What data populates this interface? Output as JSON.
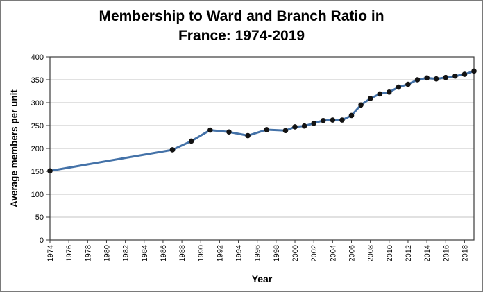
{
  "title": {
    "line1": "Membership to Ward and Branch Ratio in",
    "line2": "France: 1974-2019"
  },
  "chart_data": {
    "type": "line",
    "title": "Membership to Ward and Branch Ratio in France: 1974-2019",
    "xlabel": "Year",
    "ylabel": "Average members per unit",
    "x": [
      1974,
      1987,
      1989,
      1991,
      1993,
      1995,
      1997,
      1999,
      2000,
      2001,
      2002,
      2003,
      2004,
      2005,
      2006,
      2007,
      2008,
      2009,
      2010,
      2011,
      2012,
      2013,
      2014,
      2015,
      2016,
      2017,
      2018,
      2019
    ],
    "values": [
      151,
      197,
      216,
      240,
      236,
      228,
      241,
      239,
      247,
      249,
      255,
      261,
      262,
      262,
      272,
      295,
      309,
      319,
      323,
      334,
      340,
      350,
      354,
      352,
      355,
      358,
      362,
      369
    ],
    "xlim": [
      1974,
      2019
    ],
    "ylim": [
      0,
      400
    ],
    "y_ticks": [
      0,
      50,
      100,
      150,
      200,
      250,
      300,
      350,
      400
    ],
    "x_tick_labels": [
      "1974",
      "1976",
      "1978",
      "1980",
      "1982",
      "1984",
      "1986",
      "1988",
      "1990",
      "1992",
      "1994",
      "1996",
      "1998",
      "2000",
      "2002",
      "2004",
      "2006",
      "2008",
      "2010",
      "2012",
      "2014",
      "2016",
      "2018"
    ],
    "grid": true,
    "legend": false,
    "line_color": "#4472A8",
    "marker_color": "#131313",
    "grid_color": "#C3C3C3",
    "axis_color": "#3b3b3b",
    "tick_label_color": "#000000"
  }
}
